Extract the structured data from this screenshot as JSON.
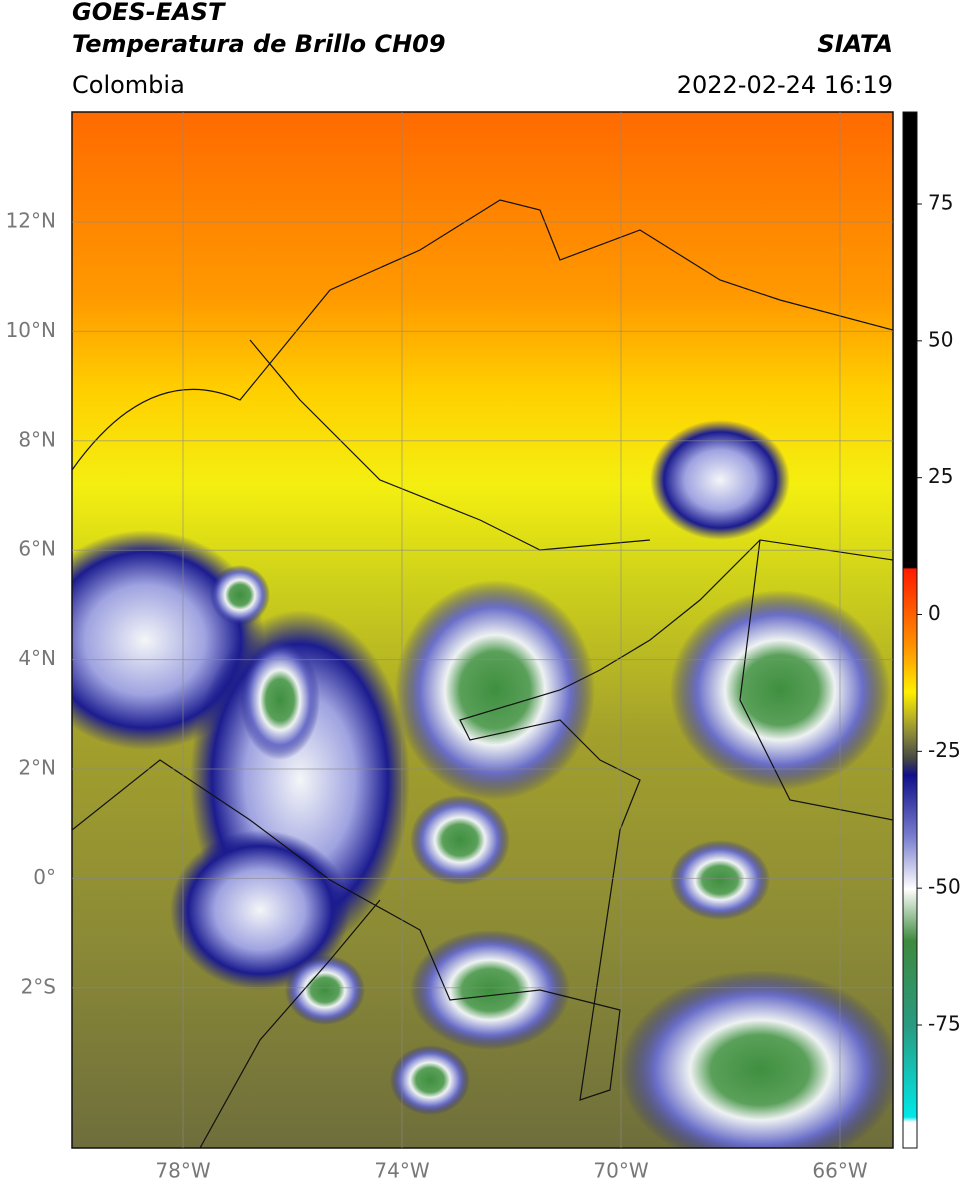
{
  "header": {
    "title": "GOES-EAST",
    "subtitle": "Temperatura de Brillo CH09",
    "source": "SIATA",
    "region": "Colombia",
    "datetime": "2022-02-24 16:19"
  },
  "map": {
    "lat_labels": [
      "12°N",
      "10°N",
      "8°N",
      "6°N",
      "4°N",
      "2°N",
      "0°",
      "2°S"
    ],
    "lon_labels": [
      "78°W",
      "74°W",
      "70°W",
      "66°W"
    ]
  },
  "colorbar": {
    "ticks": [
      75,
      50,
      25,
      0,
      -25,
      -50,
      -75
    ]
  }
}
